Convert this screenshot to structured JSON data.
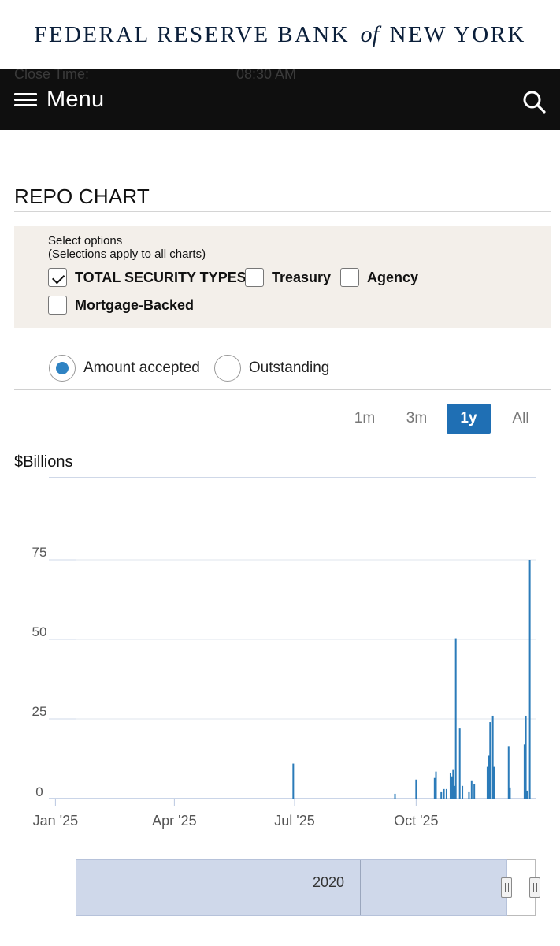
{
  "brand": {
    "part1": "FEDERAL RESERVE BANK",
    "of": "of",
    "part2": "NEW YORK"
  },
  "header_ghost": {
    "label": "Close Time:",
    "value": "08:30 AM"
  },
  "navbar": {
    "menu_label": "Menu",
    "menu_icon": "hamburger-icon",
    "search_icon": "search-icon"
  },
  "section": {
    "title": "REPO CHART"
  },
  "options": {
    "header_line1": "Select options",
    "header_line2": "(Selections apply to all charts)",
    "checkboxes": [
      {
        "label": "TOTAL SECURITY TYPES",
        "checked": true
      },
      {
        "label": "Treasury",
        "checked": false
      },
      {
        "label": "Agency",
        "checked": false
      },
      {
        "label": "Mortgage-Backed",
        "checked": false
      }
    ]
  },
  "radios": [
    {
      "label": "Amount accepted",
      "selected": true
    },
    {
      "label": "Outstanding",
      "selected": false
    }
  ],
  "ranges": [
    {
      "label": "1m",
      "active": false
    },
    {
      "label": "3m",
      "active": false
    },
    {
      "label": "1y",
      "active": true
    },
    {
      "label": "All",
      "active": false
    }
  ],
  "colors": {
    "accent": "#1f6fb4",
    "bar": "#2b7bb9",
    "navbar_bg": "#0f0f0f",
    "panel_bg": "#f3efea",
    "navigator_fill": "#cfd8ea"
  },
  "chart_data": {
    "type": "bar",
    "ylabel": "$Billions",
    "ylim": [
      0,
      75
    ],
    "yticks": [
      0,
      25,
      50,
      75
    ],
    "x_domain": [
      "2024-12-27",
      "2025-12-31"
    ],
    "x_ticks": [
      {
        "date": "2025-01-01",
        "label": "Jan '25"
      },
      {
        "date": "2025-04-01",
        "label": "Apr '25"
      },
      {
        "date": "2025-07-01",
        "label": "Jul '25"
      },
      {
        "date": "2025-10-01",
        "label": "Oct '25"
      }
    ],
    "grid": true,
    "series": [
      {
        "points": [
          {
            "x": "2025-06-30",
            "y": 11
          },
          {
            "x": "2025-09-15",
            "y": 1.5
          },
          {
            "x": "2025-10-01",
            "y": 6
          },
          {
            "x": "2025-10-15",
            "y": 6.5
          },
          {
            "x": "2025-10-16",
            "y": 8.5
          },
          {
            "x": "2025-10-20",
            "y": 2
          },
          {
            "x": "2025-10-22",
            "y": 3
          },
          {
            "x": "2025-10-24",
            "y": 3
          },
          {
            "x": "2025-10-27",
            "y": 8
          },
          {
            "x": "2025-10-28",
            "y": 7
          },
          {
            "x": "2025-10-29",
            "y": 9
          },
          {
            "x": "2025-10-30",
            "y": 4
          },
          {
            "x": "2025-10-31",
            "y": 50.35
          },
          {
            "x": "2025-11-03",
            "y": 22
          },
          {
            "x": "2025-11-05",
            "y": 4
          },
          {
            "x": "2025-11-10",
            "y": 2
          },
          {
            "x": "2025-11-12",
            "y": 5.5
          },
          {
            "x": "2025-11-14",
            "y": 4.5
          },
          {
            "x": "2025-11-24",
            "y": 10
          },
          {
            "x": "2025-11-25",
            "y": 13.5
          },
          {
            "x": "2025-11-26",
            "y": 24
          },
          {
            "x": "2025-11-28",
            "y": 26
          },
          {
            "x": "2025-11-29",
            "y": 10
          },
          {
            "x": "2025-12-10",
            "y": 16.5
          },
          {
            "x": "2025-12-11",
            "y": 3.5
          },
          {
            "x": "2025-12-22",
            "y": 17
          },
          {
            "x": "2025-12-23",
            "y": 26
          },
          {
            "x": "2025-12-24",
            "y": 2.5
          },
          {
            "x": "2025-12-26",
            "y": 75
          }
        ]
      }
    ]
  },
  "navigator": {
    "label": "2020"
  }
}
